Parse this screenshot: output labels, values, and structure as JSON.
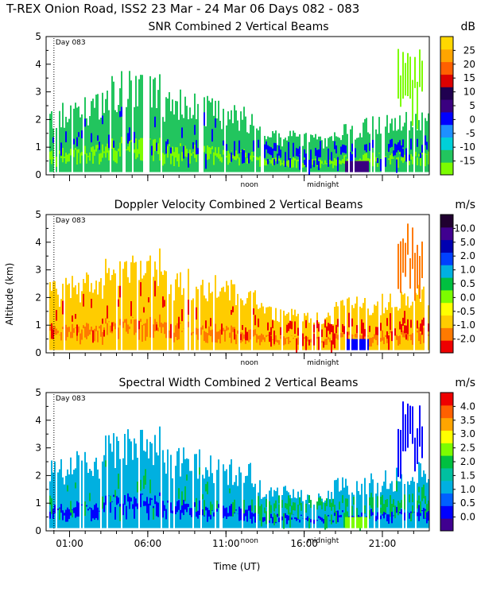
{
  "figure": {
    "title": "T-REX Onion Road, ISS2  23 Mar - 24 Mar 06 Days 082 - 083",
    "xlabel": "Time (UT)",
    "ylabel": "Altitude (km)",
    "day_marker": "Day 083",
    "midnight_label": "midnight",
    "noon_label": "noon"
  },
  "chart_data": [
    {
      "type": "heatmap",
      "title": "SNR Combined 2 Vertical Beams",
      "units": "dB",
      "ylim": [
        0,
        5
      ],
      "y_ticks": [
        "0",
        "1",
        "2",
        "3",
        "4",
        "5"
      ],
      "colorbar_ticks": [
        "-15",
        "-10",
        "-5",
        "0",
        "5",
        "10",
        "15",
        "20",
        "25"
      ],
      "colorbar_colors": [
        "#7cfc00",
        "#22c55e",
        "#00d0d8",
        "#1e90ff",
        "#0000ff",
        "#3a0080",
        "#200050",
        "#dc0000",
        "#ff6000",
        "#ffa500",
        "#ffd700"
      ],
      "colors": {
        "low": "#7cfc00",
        "mid": "#22c55e",
        "high": "#0000ff",
        "peak": "#3a0080"
      }
    },
    {
      "type": "heatmap",
      "title": "Doppler Velocity Combined 2 Vertical Beams",
      "units": "m/s",
      "ylim": [
        0,
        5
      ],
      "y_ticks": [
        "0",
        "1",
        "2",
        "3",
        "4",
        "5"
      ],
      "colorbar_ticks": [
        "-2.0",
        "-1.0",
        "-0.5",
        "0.0",
        "0.5",
        "1.0",
        "2.0",
        "5.0",
        "10.0"
      ],
      "colorbar_colors": [
        "#ee0000",
        "#ff7a00",
        "#ffcc00",
        "#ffff00",
        "#7cfc00",
        "#00c040",
        "#00b0e0",
        "#0040ff",
        "#0000b0",
        "#400090",
        "#200030"
      ],
      "colors": {
        "low": "#ff7a00",
        "mid": "#ffcc00",
        "high": "#ee0000",
        "peak": "#0000ff"
      }
    },
    {
      "type": "heatmap",
      "title": "Spectral Width Combined 2 Vertical Beams",
      "units": "m/s",
      "ylim": [
        0,
        5
      ],
      "y_ticks": [
        "0",
        "1",
        "2",
        "3",
        "4",
        "5"
      ],
      "colorbar_ticks": [
        "0.0",
        "0.5",
        "1.0",
        "1.5",
        "2.0",
        "2.5",
        "3.0",
        "3.5",
        "4.0"
      ],
      "colorbar_colors": [
        "#400090",
        "#0000ff",
        "#0060ff",
        "#00b0e0",
        "#00c0a0",
        "#00c040",
        "#7cfc00",
        "#ffff00",
        "#ffa500",
        "#ff6000",
        "#ee0000"
      ],
      "colors": {
        "low": "#0000ff",
        "mid": "#00b0e0",
        "high": "#00c040",
        "peak": "#7cfc00"
      }
    }
  ],
  "x_tick_labels": [
    "01:00",
    "06:00",
    "11:00",
    "16:00",
    "21:00"
  ],
  "x_tick_hours": [
    1,
    6,
    11,
    16,
    21
  ],
  "x_range_hours": [
    -0.5,
    24.0
  ],
  "midnight_hour": 17.2,
  "noon_hour": 12.5
}
